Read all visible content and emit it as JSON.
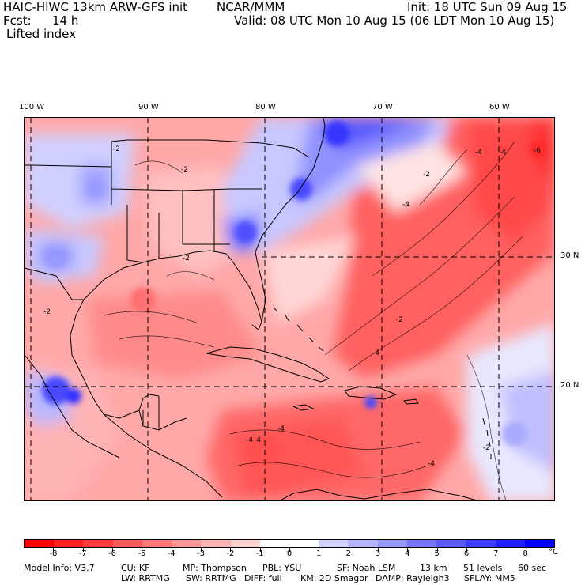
{
  "header": {
    "title_left": "HAIC-HIWC 13km ARW-GFS init",
    "org": "NCAR/MMM",
    "init": "Init: 18 UTC Sun 09 Aug 15",
    "fcst_label": "Fcst:",
    "fcst_value": "14 h",
    "valid": "Valid: 08 UTC Mon 10 Aug 15 (06 LDT Mon 10 Aug 15)",
    "field_name": "Lifted index"
  },
  "map": {
    "lon_labels": [
      "100 W",
      "90 W",
      "80 W",
      "70 W",
      "60 W"
    ],
    "lat_labels": [
      "30 N",
      "20 N"
    ],
    "contour_labels": [
      "-2",
      "-2",
      "-4",
      "-4",
      "-2",
      "-2",
      "-4",
      "-4",
      "-6",
      "-4",
      "-4",
      "-2",
      "-2",
      "-4",
      "-4",
      "-2"
    ]
  },
  "colorbar": {
    "unit": "°C",
    "labels": [
      "-8",
      "-7",
      "-6",
      "-5",
      "-4",
      "-3",
      "-2",
      "-1",
      "0",
      "1",
      "2",
      "3",
      "4",
      "5",
      "6",
      "7",
      "8"
    ],
    "colors": [
      "#ff0000",
      "#ff1f1f",
      "#ff3c3c",
      "#ff5a5a",
      "#ff7878",
      "#ff9696",
      "#ffb4b4",
      "#ffd2d2",
      "#ffffff",
      "#ffffff",
      "#d2d2ff",
      "#b4b4ff",
      "#9696ff",
      "#7878ff",
      "#5a5aff",
      "#3c3cff",
      "#1f1fff",
      "#0000ff"
    ]
  },
  "footer": {
    "model_info": "Model Info: V3.7",
    "cu": "CU: KF",
    "mp": "MP: Thompson",
    "pbl": "PBL: YSU",
    "sf": "SF: Noah LSM",
    "res": "13 km",
    "levels": "51 levels",
    "dt": "60 sec",
    "lw": "LW: RRTMG",
    "sw": "SW: RRTMG",
    "diff": "DIFF: full",
    "km": "KM: 2D Smagor",
    "damp": "DAMP: Rayleigh3",
    "sflay": "SFLAY: MM5"
  }
}
